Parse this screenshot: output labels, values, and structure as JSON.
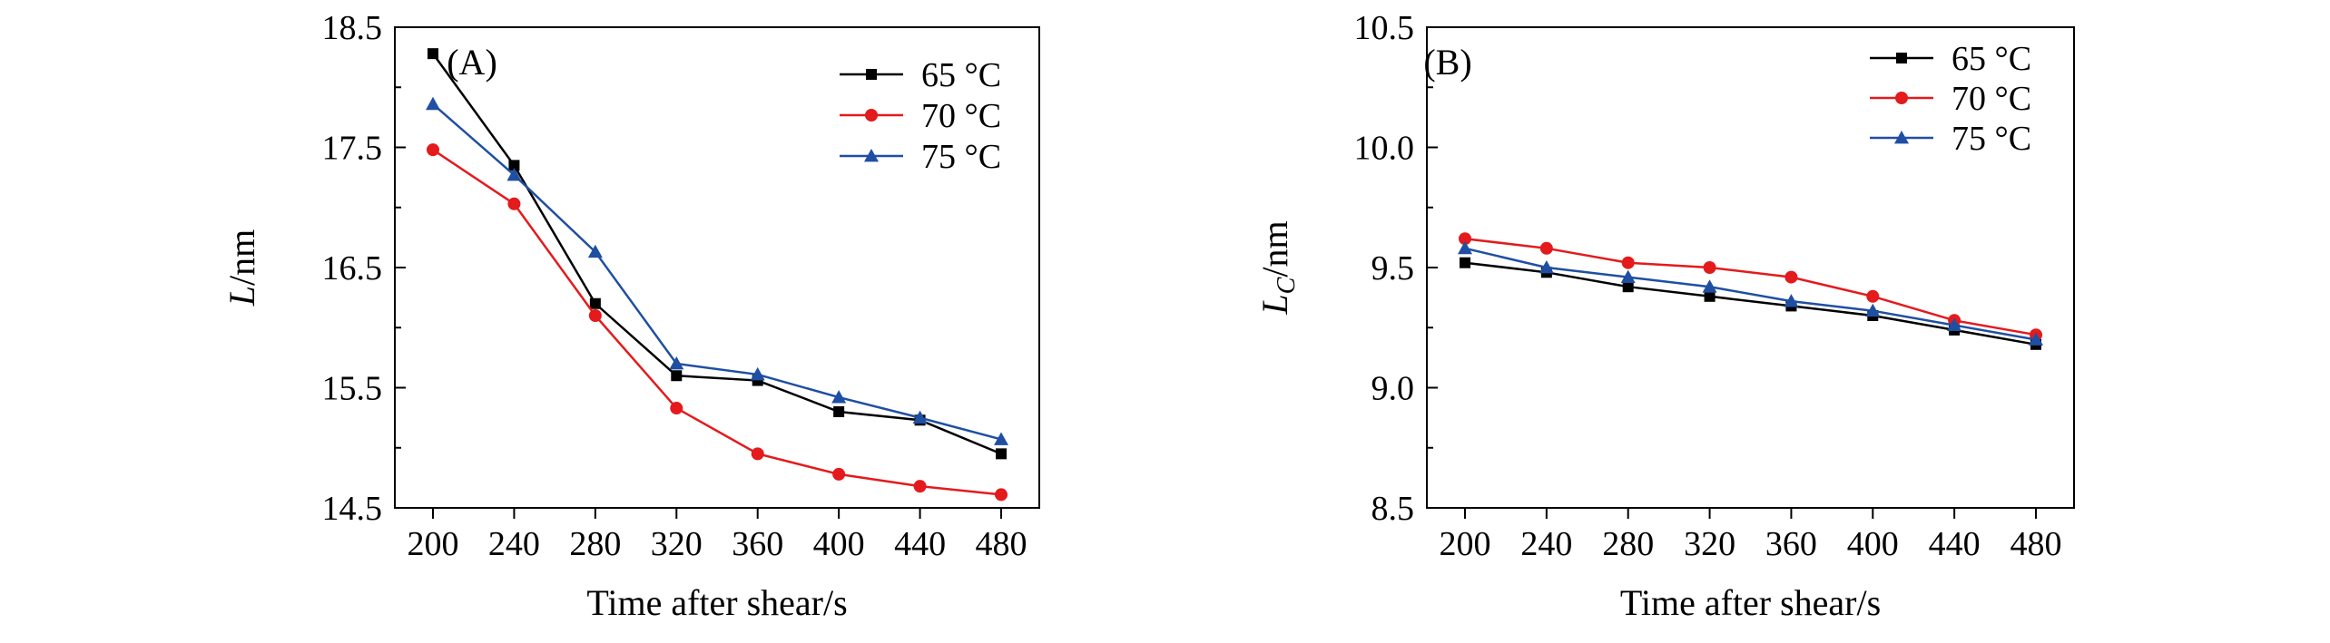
{
  "chart_data": [
    {
      "type": "line",
      "panel_label": "(A)",
      "xlabel": "Time after shear/s",
      "ylabel_main": "L",
      "ylabel_sub": "",
      "ylabel_unit": "/nm",
      "x": [
        200,
        240,
        280,
        320,
        360,
        400,
        440,
        480
      ],
      "x_tick_labels": [
        "200",
        "240",
        "280",
        "320",
        "360",
        "400",
        "440",
        "480"
      ],
      "y_ticks": [
        14.5,
        15.5,
        16.5,
        17.5,
        18.5
      ],
      "y_tick_labels": [
        "14.5",
        "15.5",
        "16.5",
        "17.5",
        "18.5"
      ],
      "ylim": [
        14.5,
        18.5
      ],
      "legend_position": "top-right",
      "series": [
        {
          "name": "65 °C",
          "color": "#000000",
          "marker": "square",
          "values": [
            18.28,
            17.35,
            16.2,
            15.6,
            15.56,
            15.3,
            15.23,
            14.95
          ]
        },
        {
          "name": "70 °C",
          "color": "#e41a1c",
          "marker": "circle",
          "values": [
            17.48,
            17.03,
            16.1,
            15.33,
            14.95,
            14.78,
            14.68,
            14.61
          ]
        },
        {
          "name": "75 °C",
          "color": "#1f4fa3",
          "marker": "triangle",
          "values": [
            17.86,
            17.27,
            16.63,
            15.7,
            15.61,
            15.42,
            15.25,
            15.07
          ]
        }
      ]
    },
    {
      "type": "line",
      "panel_label": "(B)",
      "xlabel": "Time after shear/s",
      "ylabel_main": "L",
      "ylabel_sub": "C",
      "ylabel_unit": "/nm",
      "x": [
        200,
        240,
        280,
        320,
        360,
        400,
        440,
        480
      ],
      "x_tick_labels": [
        "200",
        "240",
        "280",
        "320",
        "360",
        "400",
        "440",
        "480"
      ],
      "y_ticks": [
        8.5,
        9.0,
        9.5,
        10.0,
        10.5
      ],
      "y_tick_labels": [
        "8.5",
        "9.0",
        "9.5",
        "10.0",
        "10.5"
      ],
      "ylim": [
        8.5,
        10.5
      ],
      "legend_position": "top-right",
      "series": [
        {
          "name": "65 °C",
          "color": "#000000",
          "marker": "square",
          "values": [
            9.52,
            9.48,
            9.42,
            9.38,
            9.34,
            9.3,
            9.24,
            9.18
          ]
        },
        {
          "name": "70 °C",
          "color": "#e41a1c",
          "marker": "circle",
          "values": [
            9.62,
            9.58,
            9.52,
            9.5,
            9.46,
            9.38,
            9.28,
            9.22
          ]
        },
        {
          "name": "75 °C",
          "color": "#1f4fa3",
          "marker": "triangle",
          "values": [
            9.58,
            9.5,
            9.46,
            9.42,
            9.36,
            9.32,
            9.26,
            9.2
          ]
        }
      ]
    }
  ]
}
